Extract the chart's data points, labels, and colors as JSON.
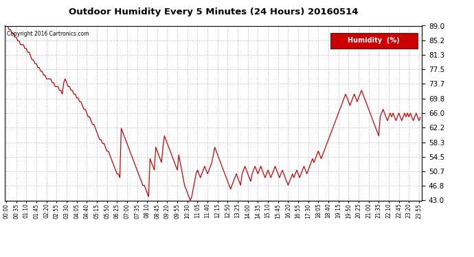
{
  "title": "Outdoor Humidity Every 5 Minutes (24 Hours) 20160514",
  "copyright_text": "Copyright 2016 Cartronics.com",
  "legend_label": "Humidity  (%)",
  "line_color": "#cc0000",
  "background_color": "#ffffff",
  "grid_color": "#999999",
  "y_min": 43.0,
  "y_max": 89.0,
  "y_ticks": [
    43.0,
    46.8,
    50.7,
    54.5,
    58.3,
    62.2,
    66.0,
    69.8,
    73.7,
    77.5,
    81.3,
    85.2,
    89.0
  ],
  "humidity_data": [
    90,
    89,
    88,
    88,
    87,
    87,
    86,
    86,
    85,
    85,
    84,
    84,
    84,
    83,
    83,
    82,
    82,
    81,
    80,
    80,
    79,
    79,
    78,
    78,
    77,
    77,
    76,
    76,
    75,
    75,
    75,
    75,
    74,
    74,
    73,
    73,
    73,
    72,
    72,
    71,
    74,
    75,
    74,
    73,
    73,
    72,
    72,
    71,
    71,
    70,
    70,
    69,
    69,
    68,
    67,
    67,
    66,
    65,
    65,
    64,
    63,
    63,
    62,
    61,
    60,
    59,
    59,
    58,
    58,
    57,
    56,
    56,
    55,
    54,
    53,
    52,
    51,
    50,
    50,
    49,
    62,
    61,
    60,
    59,
    58,
    57,
    56,
    55,
    54,
    53,
    52,
    51,
    50,
    49,
    48,
    47,
    47,
    46,
    45,
    44,
    54,
    53,
    52,
    51,
    57,
    56,
    55,
    54,
    53,
    57,
    60,
    59,
    58,
    57,
    56,
    55,
    54,
    53,
    52,
    51,
    55,
    53,
    51,
    49,
    47,
    46,
    45,
    44,
    43,
    44,
    46,
    48,
    50,
    51,
    50,
    49,
    50,
    51,
    52,
    51,
    50,
    51,
    52,
    53,
    55,
    57,
    56,
    55,
    54,
    53,
    52,
    51,
    50,
    49,
    48,
    47,
    46,
    47,
    48,
    49,
    50,
    49,
    48,
    47,
    50,
    51,
    52,
    51,
    50,
    49,
    48,
    50,
    51,
    52,
    51,
    50,
    51,
    52,
    51,
    50,
    49,
    50,
    51,
    50,
    49,
    50,
    51,
    52,
    51,
    50,
    49,
    50,
    51,
    50,
    49,
    48,
    47,
    48,
    49,
    50,
    49,
    50,
    51,
    50,
    49,
    50,
    51,
    52,
    51,
    50,
    51,
    52,
    53,
    54,
    53,
    54,
    55,
    56,
    55,
    54,
    55,
    56,
    57,
    58,
    59,
    60,
    61,
    62,
    63,
    64,
    65,
    66,
    67,
    68,
    69,
    70,
    71,
    70,
    69,
    68,
    69,
    70,
    71,
    70,
    69,
    70,
    71,
    72,
    71,
    70,
    69,
    68,
    67,
    66,
    65,
    64,
    63,
    62,
    61,
    60,
    65,
    66,
    67,
    66,
    65,
    64,
    65,
    66,
    65,
    66,
    65,
    64,
    65,
    66,
    65,
    64,
    65,
    66,
    65,
    66,
    65,
    66,
    65,
    64,
    65,
    66,
    65,
    64,
    65
  ],
  "x_tick_step": 7,
  "figwidth": 6.9,
  "figheight": 3.75,
  "dpi": 100
}
